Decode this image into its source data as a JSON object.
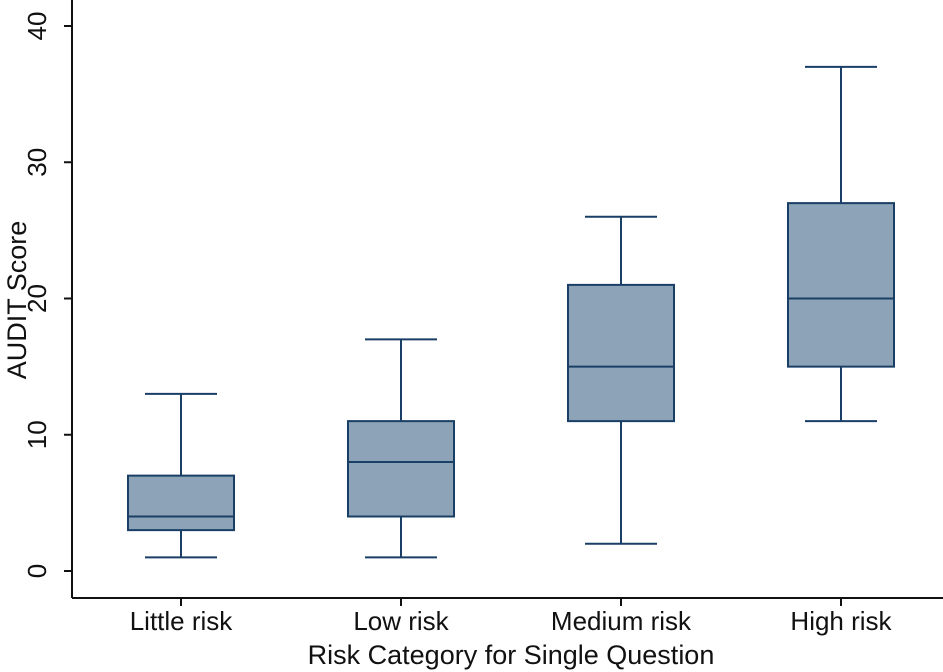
{
  "chart_data": {
    "type": "boxplot",
    "title": "",
    "xlabel": "Risk Category for Single Question",
    "ylabel": "AUDIT Score",
    "ylim": [
      0,
      40
    ],
    "yticks": [
      0,
      10,
      20,
      30,
      40
    ],
    "grid": false,
    "categories": [
      "Little risk",
      "Low risk",
      "Medium risk",
      "High risk"
    ],
    "boxes": [
      {
        "category": "Little risk",
        "whisker_low": 1,
        "q1": 3,
        "median": 4,
        "q3": 7,
        "whisker_high": 13
      },
      {
        "category": "Low risk",
        "whisker_low": 1,
        "q1": 4,
        "median": 8,
        "q3": 11,
        "whisker_high": 17
      },
      {
        "category": "Medium risk",
        "whisker_low": 2,
        "q1": 11,
        "median": 15,
        "q3": 21,
        "whisker_high": 26
      },
      {
        "category": "High risk",
        "whisker_low": 11,
        "q1": 15,
        "median": 20,
        "q3": 27,
        "whisker_high": 37
      }
    ],
    "colors": {
      "box_fill": "#8da3b7",
      "line": "#1a3f66",
      "axis": "#111111"
    }
  }
}
